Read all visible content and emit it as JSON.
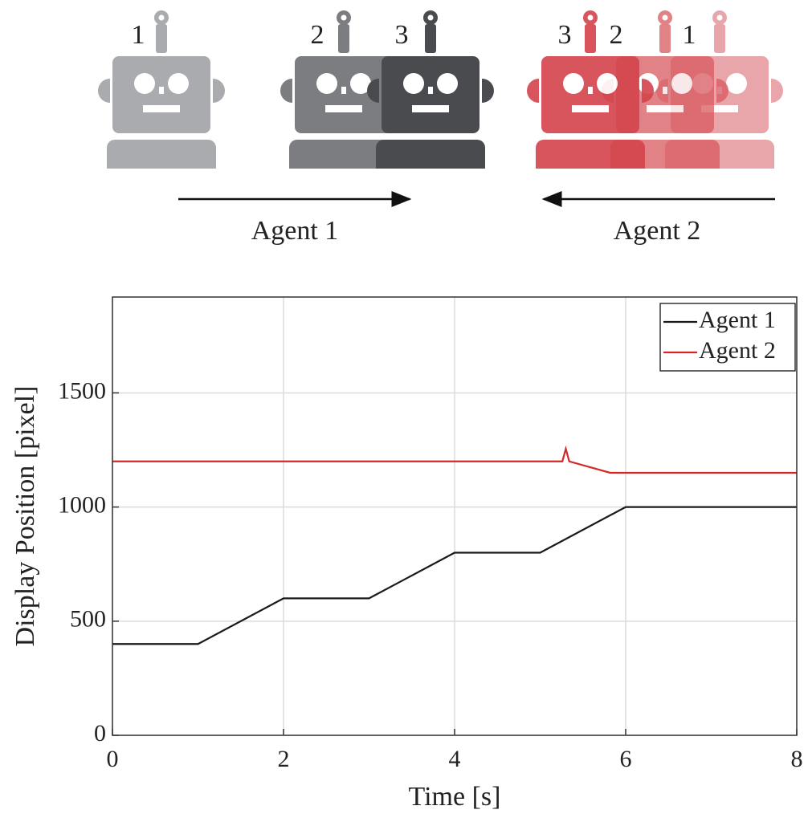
{
  "illustration": {
    "labels": [
      "1",
      "2",
      "3",
      "3",
      "2",
      "1"
    ],
    "agents": [
      "Agent 1",
      "Agent 2"
    ]
  },
  "chart_data": {
    "type": "line",
    "xlabel": "Time [s]",
    "ylabel": "Display Position [pixel]",
    "xlim": [
      0,
      8
    ],
    "ylim": [
      0,
      1920
    ],
    "xticks": [
      0,
      2,
      4,
      6,
      8
    ],
    "yticks": [
      0,
      500,
      1000,
      1500
    ],
    "grid": true,
    "legend": "upper right",
    "series": [
      {
        "name": "Agent 1",
        "color": "#1a1a1a",
        "x": [
          0,
          1,
          2,
          3,
          4,
          5,
          6,
          8
        ],
        "values": [
          400,
          400,
          600,
          600,
          800,
          800,
          1000,
          1000
        ]
      },
      {
        "name": "Agent 2",
        "color": "#d62728",
        "x": [
          0,
          5.26,
          5.3,
          5.34,
          5.82,
          8
        ],
        "values": [
          1200,
          1200,
          1255,
          1200,
          1150,
          1150
        ]
      }
    ]
  }
}
